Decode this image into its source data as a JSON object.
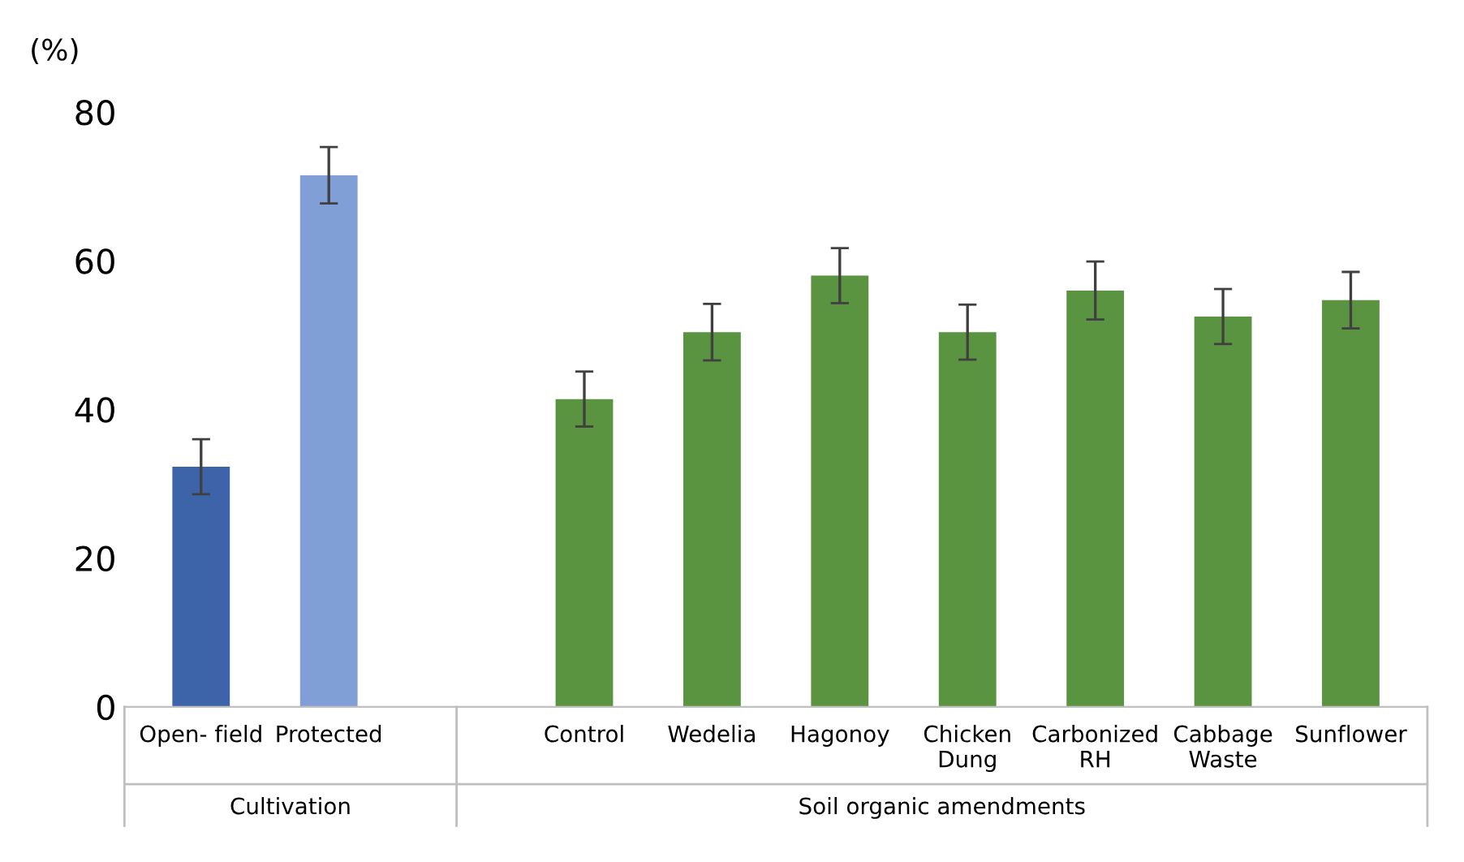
{
  "chart_data": {
    "type": "bar",
    "ylabel": "(%)",
    "categories": [
      "Open- field",
      "Protected",
      null,
      "Control",
      "Wedelia",
      "Hagonoy",
      "Chicken\nDung",
      "Carbonized\nRH",
      "Cabbage\nWaste",
      "Sunflower"
    ],
    "values": [
      32.3,
      71.5,
      null,
      41.4,
      50.4,
      58.0,
      50.4,
      56.0,
      52.5,
      54.7
    ],
    "errors": [
      3.7,
      3.8,
      null,
      3.7,
      3.8,
      3.7,
      3.7,
      3.9,
      3.7,
      3.8
    ],
    "colors": [
      "#3d64a8",
      "#7f9fd6",
      null,
      "#5a9440",
      "#5a9440",
      "#5a9440",
      "#5a9440",
      "#5a9440",
      "#5a9440",
      "#5a9440"
    ],
    "ylim": [
      0,
      80
    ],
    "yticks": [
      0,
      20,
      40,
      60,
      80
    ],
    "grid": false,
    "annotations": [
      "Cultivation",
      "Soil organic amendments"
    ]
  }
}
